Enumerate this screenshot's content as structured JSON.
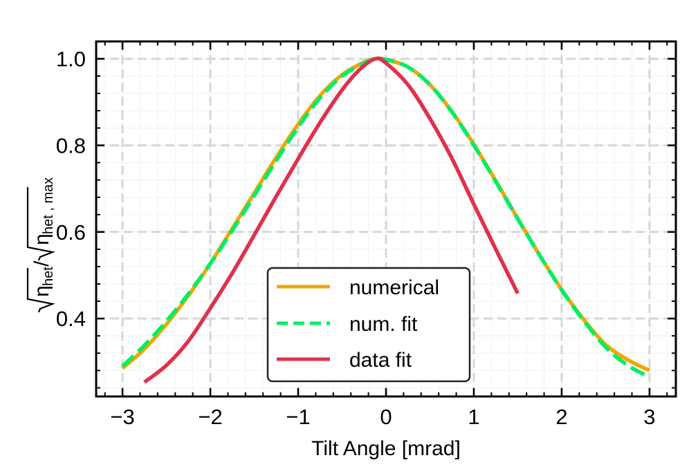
{
  "chart_data": {
    "type": "line",
    "title": "",
    "xlabel": "Tilt Angle [mrad]",
    "ylabel": "√η_het / √η_het,max",
    "ylabel_parts": {
      "main": "η",
      "sub1": "het",
      "sub2": "het , max"
    },
    "xlim": [
      -3.3,
      3.3
    ],
    "ylim": [
      0.22,
      1.04
    ],
    "x_ticks": [
      -3,
      -2,
      -1,
      0,
      1,
      2,
      3
    ],
    "x_tick_labels": [
      "−3",
      "−2",
      "−1",
      "0",
      "1",
      "2",
      "3"
    ],
    "y_ticks": [
      0.4,
      0.6,
      0.8,
      1.0
    ],
    "y_tick_labels": [
      "0.4",
      "0.6",
      "0.8",
      "1.0"
    ],
    "grid": true,
    "legend_position": "bottom-center",
    "series": [
      {
        "name": "numerical",
        "color": "#F0A800",
        "style": "solid",
        "x": [
          -3.0,
          -2.75,
          -2.5,
          -2.25,
          -2.0,
          -1.75,
          -1.5,
          -1.25,
          -1.0,
          -0.75,
          -0.5,
          -0.25,
          -0.12,
          0.0,
          0.25,
          0.5,
          0.75,
          1.0,
          1.25,
          1.5,
          1.75,
          2.0,
          2.25,
          2.5,
          2.75,
          3.0
        ],
        "values": [
          0.285,
          0.33,
          0.387,
          0.453,
          0.527,
          0.608,
          0.69,
          0.772,
          0.849,
          0.915,
          0.963,
          0.992,
          1.0,
          0.998,
          0.981,
          0.94,
          0.878,
          0.802,
          0.718,
          0.631,
          0.546,
          0.467,
          0.398,
          0.34,
          0.305,
          0.28
        ]
      },
      {
        "name": "num. fit",
        "color": "#00EE66",
        "style": "dashed",
        "x": [
          -3.0,
          -2.75,
          -2.5,
          -2.25,
          -2.0,
          -1.75,
          -1.5,
          -1.25,
          -1.0,
          -0.75,
          -0.5,
          -0.25,
          -0.12,
          0.0,
          0.25,
          0.5,
          0.75,
          1.0,
          1.25,
          1.5,
          1.75,
          2.0,
          2.25,
          2.5,
          2.75,
          3.0
        ],
        "values": [
          0.29,
          0.338,
          0.394,
          0.457,
          0.527,
          0.603,
          0.684,
          0.765,
          0.842,
          0.91,
          0.96,
          0.99,
          1.0,
          0.998,
          0.981,
          0.94,
          0.877,
          0.8,
          0.716,
          0.63,
          0.546,
          0.466,
          0.395,
          0.334,
          0.292,
          0.265
        ]
      },
      {
        "name": "data fit",
        "color": "#E0304E",
        "style": "solid",
        "x": [
          -2.75,
          -2.5,
          -2.25,
          -2.0,
          -1.75,
          -1.5,
          -1.25,
          -1.0,
          -0.75,
          -0.5,
          -0.3,
          -0.12,
          0.0,
          0.25,
          0.5,
          0.75,
          1.0,
          1.25,
          1.5
        ],
        "values": [
          0.253,
          0.292,
          0.348,
          0.424,
          0.505,
          0.593,
          0.682,
          0.769,
          0.853,
          0.928,
          0.975,
          1.0,
          0.99,
          0.94,
          0.862,
          0.77,
          0.664,
          0.56,
          0.458
        ]
      }
    ]
  }
}
